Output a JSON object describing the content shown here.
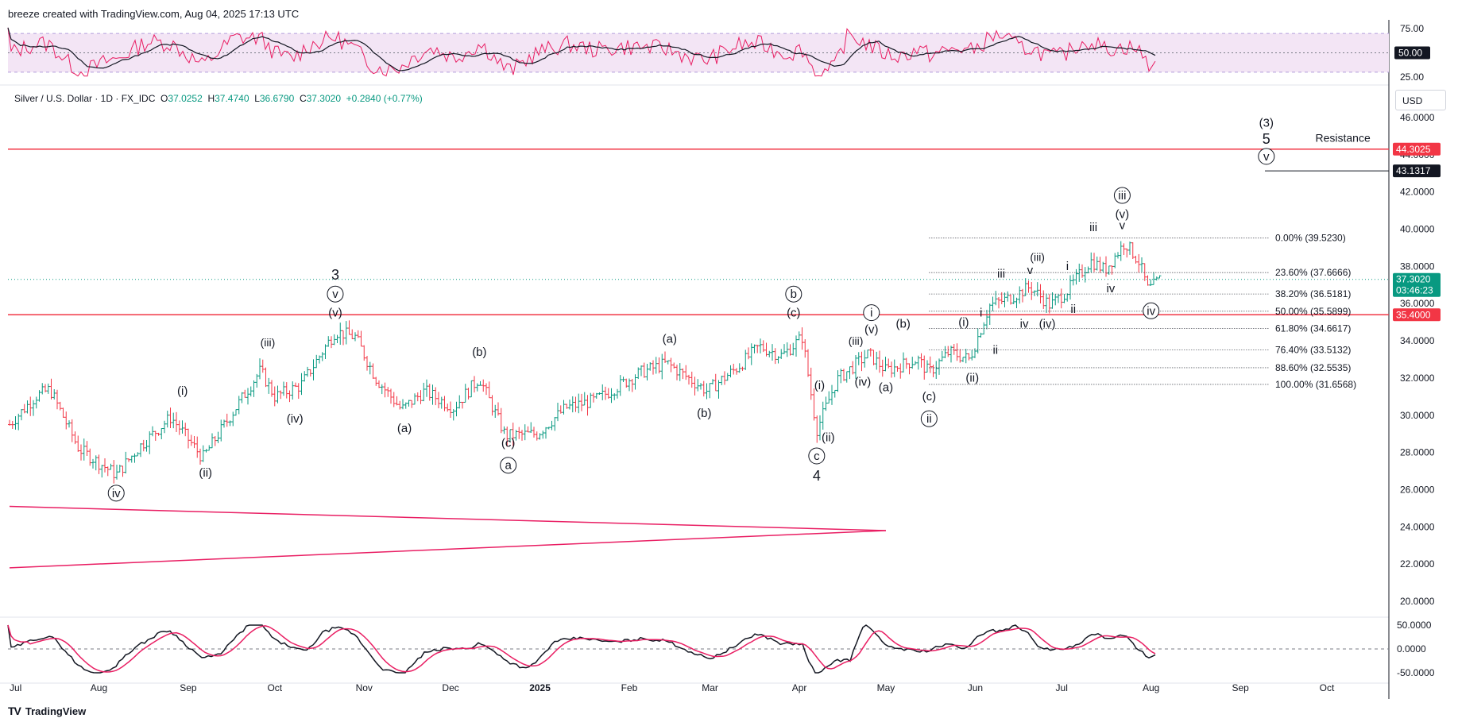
{
  "header": {
    "credit": "breeze created with TradingView.com, Aug 04, 2025 17:13 UTC"
  },
  "legend": {
    "symbol": "Silver / U.S. Dollar · 1D · FX_IDC",
    "o_label": "O",
    "open": "37.0252",
    "h_label": "H",
    "high": "37.4740",
    "l_label": "L",
    "low": "36.6790",
    "c_label": "C",
    "close": "37.3020",
    "change": "+0.2840 (+0.77%)"
  },
  "currency": "USD",
  "footer": {
    "brand": "TradingView",
    "logo": "tradingview-logo-icon"
  },
  "colors": {
    "up": "#089981",
    "down": "#f23645",
    "rsi": "#e91e63",
    "rsi_ma": "#131722",
    "band": "#f3e5f5",
    "line_red": "#f23645",
    "fib": "#131722"
  },
  "price_tags": [
    {
      "label": "44.3025",
      "value": 44.3025,
      "color": "#f23645"
    },
    {
      "label": "43.1317",
      "value": 43.1317,
      "color": "#131722"
    },
    {
      "label": "37.3020",
      "sub": "03:46:23",
      "value": 37.302,
      "color": "#089981"
    },
    {
      "label": "35.4000",
      "value": 35.4,
      "color": "#f23645"
    }
  ],
  "chart_data": {
    "type": "ohlc",
    "title": "Silver / U.S. Dollar · 1D · FX_IDC",
    "price_axis": {
      "ticks": [
        "46.0000",
        "44.0000",
        "42.0000",
        "40.0000",
        "38.0000",
        "36.0000",
        "34.0000",
        "32.0000",
        "30.0000",
        "28.0000",
        "26.0000",
        "24.0000",
        "22.0000",
        "20.0000"
      ],
      "ylim": [
        19.2,
        47
      ]
    },
    "time_axis": {
      "labels": [
        "Jul",
        "Aug",
        "Sep",
        "Oct",
        "Nov",
        "Dec",
        "2025",
        "Feb",
        "Mar",
        "Apr",
        "May",
        "Jun",
        "Jul",
        "Aug",
        "Sep",
        "Oct"
      ]
    },
    "close_path": [
      [
        "2024-07-01",
        29.5
      ],
      [
        "2024-07-10",
        31.0
      ],
      [
        "2024-07-15",
        31.4
      ],
      [
        "2024-07-25",
        28.2
      ],
      [
        "2024-08-07",
        26.8
      ],
      [
        "2024-08-15",
        28.3
      ],
      [
        "2024-08-26",
        29.9
      ],
      [
        "2024-09-06",
        27.7
      ],
      [
        "2024-09-20",
        31.0
      ],
      [
        "2024-09-26",
        32.4
      ],
      [
        "2024-10-01",
        31.0
      ],
      [
        "2024-10-10",
        31.6
      ],
      [
        "2024-10-22",
        34.5
      ],
      [
        "2024-10-29",
        34.2
      ],
      [
        "2024-11-05",
        32.0
      ],
      [
        "2024-11-14",
        30.3
      ],
      [
        "2024-11-22",
        31.3
      ],
      [
        "2024-12-02",
        30.4
      ],
      [
        "2024-12-11",
        32.0
      ],
      [
        "2024-12-20",
        28.9
      ],
      [
        "2024-12-31",
        29.0
      ],
      [
        "2025-01-10",
        30.4
      ],
      [
        "2025-01-20",
        30.8
      ],
      [
        "2025-02-05",
        32.3
      ],
      [
        "2025-02-14",
        32.8
      ],
      [
        "2025-02-28",
        31.3
      ],
      [
        "2025-03-10",
        32.5
      ],
      [
        "2025-03-18",
        33.7
      ],
      [
        "2025-03-26",
        33.2
      ],
      [
        "2025-04-02",
        34.2
      ],
      [
        "2025-04-07",
        29.2
      ],
      [
        "2025-04-14",
        31.9
      ],
      [
        "2025-04-25",
        33.3
      ],
      [
        "2025-05-01",
        32.4
      ],
      [
        "2025-05-12",
        33.0
      ],
      [
        "2025-05-16",
        32.3
      ],
      [
        "2025-05-23",
        33.4
      ],
      [
        "2025-05-30",
        33.0
      ],
      [
        "2025-06-06",
        35.9
      ],
      [
        "2025-06-13",
        36.3
      ],
      [
        "2025-06-20",
        36.9
      ],
      [
        "2025-06-27",
        35.9
      ],
      [
        "2025-07-03",
        36.7
      ],
      [
        "2025-07-11",
        38.3
      ],
      [
        "2025-07-16",
        37.8
      ],
      [
        "2025-07-23",
        39.3
      ],
      [
        "2025-07-28",
        38.2
      ],
      [
        "2025-07-31",
        36.7
      ],
      [
        "2025-08-04",
        37.3
      ]
    ],
    "horizontal_lines": [
      {
        "name": "Resistance",
        "value": 44.3025
      },
      {
        "value": 35.4
      }
    ],
    "target_line": {
      "value": 43.1317
    },
    "fib_retracement": [
      {
        "label": "0.00% (39.5230)",
        "value": 39.523
      },
      {
        "label": "23.60% (37.6666)",
        "value": 37.6666
      },
      {
        "label": "38.20% (36.5181)",
        "value": 36.5181
      },
      {
        "label": "50.00% (35.5899)",
        "value": 35.5899
      },
      {
        "label": "61.80% (34.6617)",
        "value": 34.6617
      },
      {
        "label": "76.40% (33.5132)",
        "value": 33.5132
      },
      {
        "label": "88.60% (32.5535)",
        "value": 32.5535
      },
      {
        "label": "100.00% (31.6568)",
        "value": 31.6568
      }
    ],
    "triangle": {
      "apex_date": "2025-05-01",
      "apex": 23.8,
      "upper_start": 25.1,
      "lower_start": 21.8,
      "start_date": "2024-07-01"
    },
    "wave_labels": [
      {
        "text": "iv",
        "circled": true,
        "date": "2024-08-07",
        "price": 25.6
      },
      {
        "text": "(i)",
        "date": "2024-08-30",
        "price": 31.1
      },
      {
        "text": "(ii)",
        "date": "2024-09-07",
        "price": 26.7
      },
      {
        "text": "(iii)",
        "date": "2024-09-26",
        "price": 33.7
      },
      {
        "text": "(iv)",
        "date": "2024-10-08",
        "price": 29.6
      },
      {
        "text": "(v)",
        "date": "2024-10-22",
        "price": 35.3
      },
      {
        "text": "v",
        "circled": true,
        "date": "2024-10-22",
        "price": 36.3
      },
      {
        "text": "3",
        "date": "2024-10-22",
        "price": 37.3
      },
      {
        "text": "(a)",
        "date": "2024-11-15",
        "price": 29.1
      },
      {
        "text": "(b)",
        "date": "2024-12-11",
        "price": 33.2
      },
      {
        "text": "(c)",
        "date": "2024-12-21",
        "price": 28.3
      },
      {
        "text": "a",
        "circled": true,
        "date": "2024-12-21",
        "price": 27.1
      },
      {
        "text": "(a)",
        "date": "2025-02-15",
        "price": 33.9
      },
      {
        "text": "(b)",
        "date": "2025-02-27",
        "price": 29.9
      },
      {
        "text": "(c)",
        "date": "2025-03-30",
        "price": 35.3
      },
      {
        "text": "b",
        "circled": true,
        "date": "2025-03-30",
        "price": 36.3
      },
      {
        "text": "(i)",
        "date": "2025-04-08",
        "price": 31.4
      },
      {
        "text": "(ii)",
        "date": "2025-04-11",
        "price": 28.6
      },
      {
        "text": "c",
        "circled": true,
        "date": "2025-04-07",
        "price": 27.6
      },
      {
        "text": "4",
        "date": "2025-04-07",
        "price": 26.5
      },
      {
        "text": "(iii)",
        "date": "2025-04-18",
        "price": 33.8
      },
      {
        "text": "(iv)",
        "date": "2025-04-23",
        "price": 31.6
      },
      {
        "text": "(v)",
        "date": "2025-04-26",
        "price": 34.4
      },
      {
        "text": "i",
        "circled": true,
        "date": "2025-04-26",
        "price": 35.3
      },
      {
        "text": "(a)",
        "date": "2025-05-01",
        "price": 31.3
      },
      {
        "text": "(b)",
        "date": "2025-05-07",
        "price": 34.7
      },
      {
        "text": "(c)",
        "date": "2025-05-16",
        "price": 30.8
      },
      {
        "text": "ii",
        "circled": true,
        "date": "2025-05-16",
        "price": 29.6
      },
      {
        "text": "(i)",
        "date": "2025-05-28",
        "price": 34.8
      },
      {
        "text": "(ii)",
        "date": "2025-05-31",
        "price": 31.8
      },
      {
        "text": "i",
        "date": "2025-06-03",
        "price": 35.3
      },
      {
        "text": "ii",
        "date": "2025-06-08",
        "price": 33.3
      },
      {
        "text": "iii",
        "date": "2025-06-10",
        "price": 37.4
      },
      {
        "text": "iv",
        "date": "2025-06-18",
        "price": 34.7
      },
      {
        "text": "(iii)",
        "date": "2025-06-20",
        "price": 38.3
      },
      {
        "text": "v",
        "date": "2025-06-20",
        "price": 37.6
      },
      {
        "text": "(iv)",
        "date": "2025-06-26",
        "price": 34.7
      },
      {
        "text": "i",
        "date": "2025-07-03",
        "price": 37.8
      },
      {
        "text": "ii",
        "date": "2025-07-05",
        "price": 35.5
      },
      {
        "text": "iii",
        "date": "2025-07-12",
        "price": 39.9
      },
      {
        "text": "iv",
        "date": "2025-07-18",
        "price": 36.6
      },
      {
        "text": "(v)",
        "date": "2025-07-22",
        "price": 40.6
      },
      {
        "text": "v",
        "date": "2025-07-22",
        "price": 40.0
      },
      {
        "text": "iii",
        "circled": true,
        "date": "2025-07-22",
        "price": 41.6
      },
      {
        "text": "iv",
        "circled": true,
        "date": "2025-08-01",
        "price": 35.4
      },
      {
        "text": "v",
        "circled": true,
        "date": "2025-09-10",
        "price": 43.7
      },
      {
        "text": "5",
        "date": "2025-09-10",
        "price": 44.6
      },
      {
        "text": "(3)",
        "date": "2025-09-10",
        "price": 45.5
      },
      {
        "text": "Resistance",
        "date": "2025-09-27",
        "price": 44.7
      }
    ],
    "rsi_panel": {
      "ticks": [
        "75.00",
        "50.00",
        "25.00"
      ],
      "ylim": [
        20,
        80
      ],
      "band": [
        30,
        70
      ],
      "current_label": "50.00",
      "current": 50
    },
    "macd_panel": {
      "ticks": [
        "50.0000",
        "0.0000",
        "-50.0000"
      ],
      "ylim": [
        -60,
        60
      ]
    }
  }
}
